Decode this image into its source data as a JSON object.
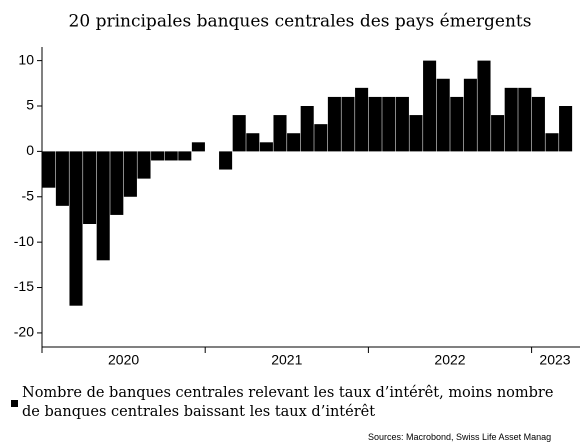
{
  "chart_data": {
    "type": "bar",
    "title": "20 principales banques centrales des pays émergents",
    "categories": [
      null,
      null,
      null,
      null,
      null,
      null,
      null,
      null,
      null,
      null,
      null,
      null,
      null,
      null,
      null,
      null,
      null,
      null,
      null,
      null,
      null,
      null,
      null,
      null,
      null,
      null,
      null,
      null,
      null,
      null,
      null,
      null,
      null,
      null,
      null,
      null,
      null,
      null,
      null
    ],
    "series": [
      {
        "name": "Nombre de banques centrales relevant les taux d’intérêt, moins nombre\nde banques centrales baissant les taux d’intérêt",
        "color": "#000000",
        "values": [
          -4,
          -6,
          -17,
          -8,
          -12,
          -7,
          -5,
          -3,
          -1,
          -1,
          -1,
          1,
          0,
          -2,
          4,
          2,
          1,
          4,
          2,
          5,
          3,
          6,
          6,
          7,
          6,
          6,
          6,
          4,
          10,
          8,
          6,
          8,
          10,
          4,
          7,
          7,
          6,
          2,
          5
        ]
      }
    ],
    "year_labels": [
      "2020",
      "2021",
      "2022",
      "2023"
    ],
    "ylim": [
      -21,
      11.5
    ],
    "yticks": [
      -20,
      -15,
      -10,
      -5,
      0,
      5,
      10
    ],
    "source": "Sources: Macrobond, Swiss Life Asset Manag"
  }
}
